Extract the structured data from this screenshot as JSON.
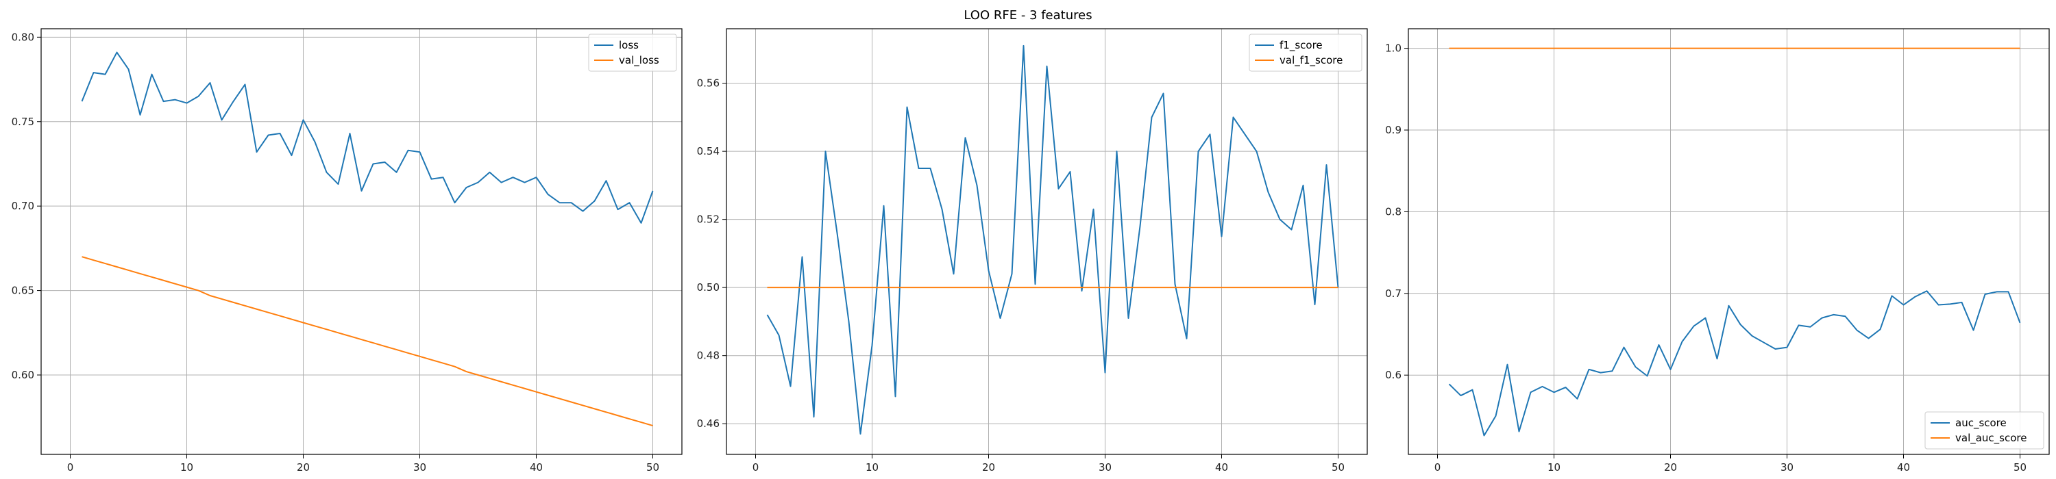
{
  "figure": {
    "title": "LOO RFE - 3 features"
  },
  "colors": {
    "series_1": "#1f77b4",
    "series_2": "#ff7f0e",
    "grid": "#b0b0b0",
    "axes": "#000000"
  },
  "chart_data": [
    {
      "type": "line",
      "title": "",
      "xlabel": "",
      "ylabel": "",
      "xlim": [
        -2.5,
        52.5
      ],
      "ylim": [
        0.553,
        0.805
      ],
      "xticks": [
        0,
        10,
        20,
        30,
        40,
        50
      ],
      "yticks": [
        0.6,
        0.65,
        0.7,
        0.75,
        0.8
      ],
      "ytick_labels": [
        "0.60",
        "0.65",
        "0.70",
        "0.75",
        "0.80"
      ],
      "grid": true,
      "legend": {
        "placement": "top-right"
      },
      "x": [
        1,
        2,
        3,
        4,
        5,
        6,
        7,
        8,
        9,
        10,
        11,
        12,
        13,
        14,
        15,
        16,
        17,
        18,
        19,
        20,
        21,
        22,
        23,
        24,
        25,
        26,
        27,
        28,
        29,
        30,
        31,
        32,
        33,
        34,
        35,
        36,
        37,
        38,
        39,
        40,
        41,
        42,
        43,
        44,
        45,
        46,
        47,
        48,
        49,
        50
      ],
      "series": [
        {
          "name": "loss",
          "values": [
            0.762,
            0.779,
            0.778,
            0.791,
            0.781,
            0.754,
            0.778,
            0.762,
            0.763,
            0.761,
            0.765,
            0.773,
            0.751,
            0.762,
            0.772,
            0.732,
            0.742,
            0.743,
            0.73,
            0.751,
            0.738,
            0.72,
            0.713,
            0.743,
            0.709,
            0.725,
            0.726,
            0.72,
            0.733,
            0.732,
            0.716,
            0.717,
            0.702,
            0.711,
            0.714,
            0.72,
            0.714,
            0.717,
            0.714,
            0.717,
            0.707,
            0.702,
            0.702,
            0.697,
            0.703,
            0.715,
            0.698,
            0.702,
            0.69,
            0.709
          ]
        },
        {
          "name": "val_loss",
          "values": [
            0.67,
            0.668,
            0.666,
            0.664,
            0.662,
            0.66,
            0.658,
            0.656,
            0.654,
            0.652,
            0.65,
            0.647,
            0.645,
            0.643,
            0.641,
            0.639,
            0.637,
            0.635,
            0.633,
            0.631,
            0.629,
            0.627,
            0.625,
            0.623,
            0.621,
            0.619,
            0.617,
            0.615,
            0.613,
            0.611,
            0.609,
            0.607,
            0.605,
            0.602,
            0.6,
            0.598,
            0.596,
            0.594,
            0.592,
            0.59,
            0.588,
            0.586,
            0.584,
            0.582,
            0.58,
            0.578,
            0.576,
            0.574,
            0.572,
            0.57
          ]
        }
      ]
    },
    {
      "type": "line",
      "title": "",
      "xlabel": "",
      "ylabel": "",
      "xlim": [
        -2.5,
        52.5
      ],
      "ylim": [
        0.451,
        0.576
      ],
      "xticks": [
        0,
        10,
        20,
        30,
        40,
        50
      ],
      "yticks": [
        0.46,
        0.48,
        0.5,
        0.52,
        0.54,
        0.56
      ],
      "ytick_labels": [
        "0.46",
        "0.48",
        "0.50",
        "0.52",
        "0.54",
        "0.56"
      ],
      "grid": true,
      "legend": {
        "placement": "top-right"
      },
      "x": [
        1,
        2,
        3,
        4,
        5,
        6,
        7,
        8,
        9,
        10,
        11,
        12,
        13,
        14,
        15,
        16,
        17,
        18,
        19,
        20,
        21,
        22,
        23,
        24,
        25,
        26,
        27,
        28,
        29,
        30,
        31,
        32,
        33,
        34,
        35,
        36,
        37,
        38,
        39,
        40,
        41,
        42,
        43,
        44,
        45,
        46,
        47,
        48,
        49,
        50
      ],
      "series": [
        {
          "name": "f1_score",
          "values": [
            0.492,
            0.486,
            0.471,
            0.509,
            0.462,
            0.54,
            0.516,
            0.49,
            0.457,
            0.483,
            0.524,
            0.468,
            0.553,
            0.535,
            0.535,
            0.523,
            0.504,
            0.544,
            0.53,
            0.505,
            0.491,
            0.504,
            0.571,
            0.501,
            0.565,
            0.529,
            0.534,
            0.499,
            0.523,
            0.475,
            0.54,
            0.491,
            0.518,
            0.55,
            0.557,
            0.501,
            0.485,
            0.54,
            0.545,
            0.515,
            0.55,
            0.545,
            0.54,
            0.528,
            0.52,
            0.517,
            0.53,
            0.495,
            0.536,
            0.5
          ]
        },
        {
          "name": "val_f1_score",
          "values": [
            0.5,
            0.5,
            0.5,
            0.5,
            0.5,
            0.5,
            0.5,
            0.5,
            0.5,
            0.5,
            0.5,
            0.5,
            0.5,
            0.5,
            0.5,
            0.5,
            0.5,
            0.5,
            0.5,
            0.5,
            0.5,
            0.5,
            0.5,
            0.5,
            0.5,
            0.5,
            0.5,
            0.5,
            0.5,
            0.5,
            0.5,
            0.5,
            0.5,
            0.5,
            0.5,
            0.5,
            0.5,
            0.5,
            0.5,
            0.5,
            0.5,
            0.5,
            0.5,
            0.5,
            0.5,
            0.5,
            0.5,
            0.5,
            0.5,
            0.5
          ]
        }
      ]
    },
    {
      "type": "line",
      "title": "",
      "xlabel": "",
      "ylabel": "",
      "xlim": [
        -2.5,
        52.5
      ],
      "ylim": [
        0.503,
        1.024
      ],
      "xticks": [
        0,
        10,
        20,
        30,
        40,
        50
      ],
      "yticks": [
        0.6,
        0.7,
        0.8,
        0.9,
        1.0
      ],
      "ytick_labels": [
        "0.6",
        "0.7",
        "0.8",
        "0.9",
        "1.0"
      ],
      "grid": true,
      "legend": {
        "placement": "bottom-right"
      },
      "x": [
        1,
        2,
        3,
        4,
        5,
        6,
        7,
        8,
        9,
        10,
        11,
        12,
        13,
        14,
        15,
        16,
        17,
        18,
        19,
        20,
        21,
        22,
        23,
        24,
        25,
        26,
        27,
        28,
        29,
        30,
        31,
        32,
        33,
        34,
        35,
        36,
        37,
        38,
        39,
        40,
        41,
        42,
        43,
        44,
        45,
        46,
        47,
        48,
        49,
        50
      ],
      "series": [
        {
          "name": "auc_score",
          "values": [
            0.589,
            0.575,
            0.582,
            0.526,
            0.55,
            0.613,
            0.531,
            0.579,
            0.586,
            0.579,
            0.585,
            0.571,
            0.607,
            0.603,
            0.605,
            0.634,
            0.61,
            0.599,
            0.637,
            0.607,
            0.641,
            0.66,
            0.67,
            0.62,
            0.685,
            0.662,
            0.648,
            0.64,
            0.632,
            0.634,
            0.661,
            0.659,
            0.67,
            0.674,
            0.672,
            0.655,
            0.645,
            0.656,
            0.697,
            0.686,
            0.696,
            0.703,
            0.686,
            0.687,
            0.689,
            0.655,
            0.699,
            0.702,
            0.702,
            0.664
          ]
        },
        {
          "name": "val_auc_score",
          "values": [
            1.0,
            1.0,
            1.0,
            1.0,
            1.0,
            1.0,
            1.0,
            1.0,
            1.0,
            1.0,
            1.0,
            1.0,
            1.0,
            1.0,
            1.0,
            1.0,
            1.0,
            1.0,
            1.0,
            1.0,
            1.0,
            1.0,
            1.0,
            1.0,
            1.0,
            1.0,
            1.0,
            1.0,
            1.0,
            1.0,
            1.0,
            1.0,
            1.0,
            1.0,
            1.0,
            1.0,
            1.0,
            1.0,
            1.0,
            1.0,
            1.0,
            1.0,
            1.0,
            1.0,
            1.0,
            1.0,
            1.0,
            1.0,
            1.0,
            1.0
          ]
        }
      ]
    }
  ]
}
